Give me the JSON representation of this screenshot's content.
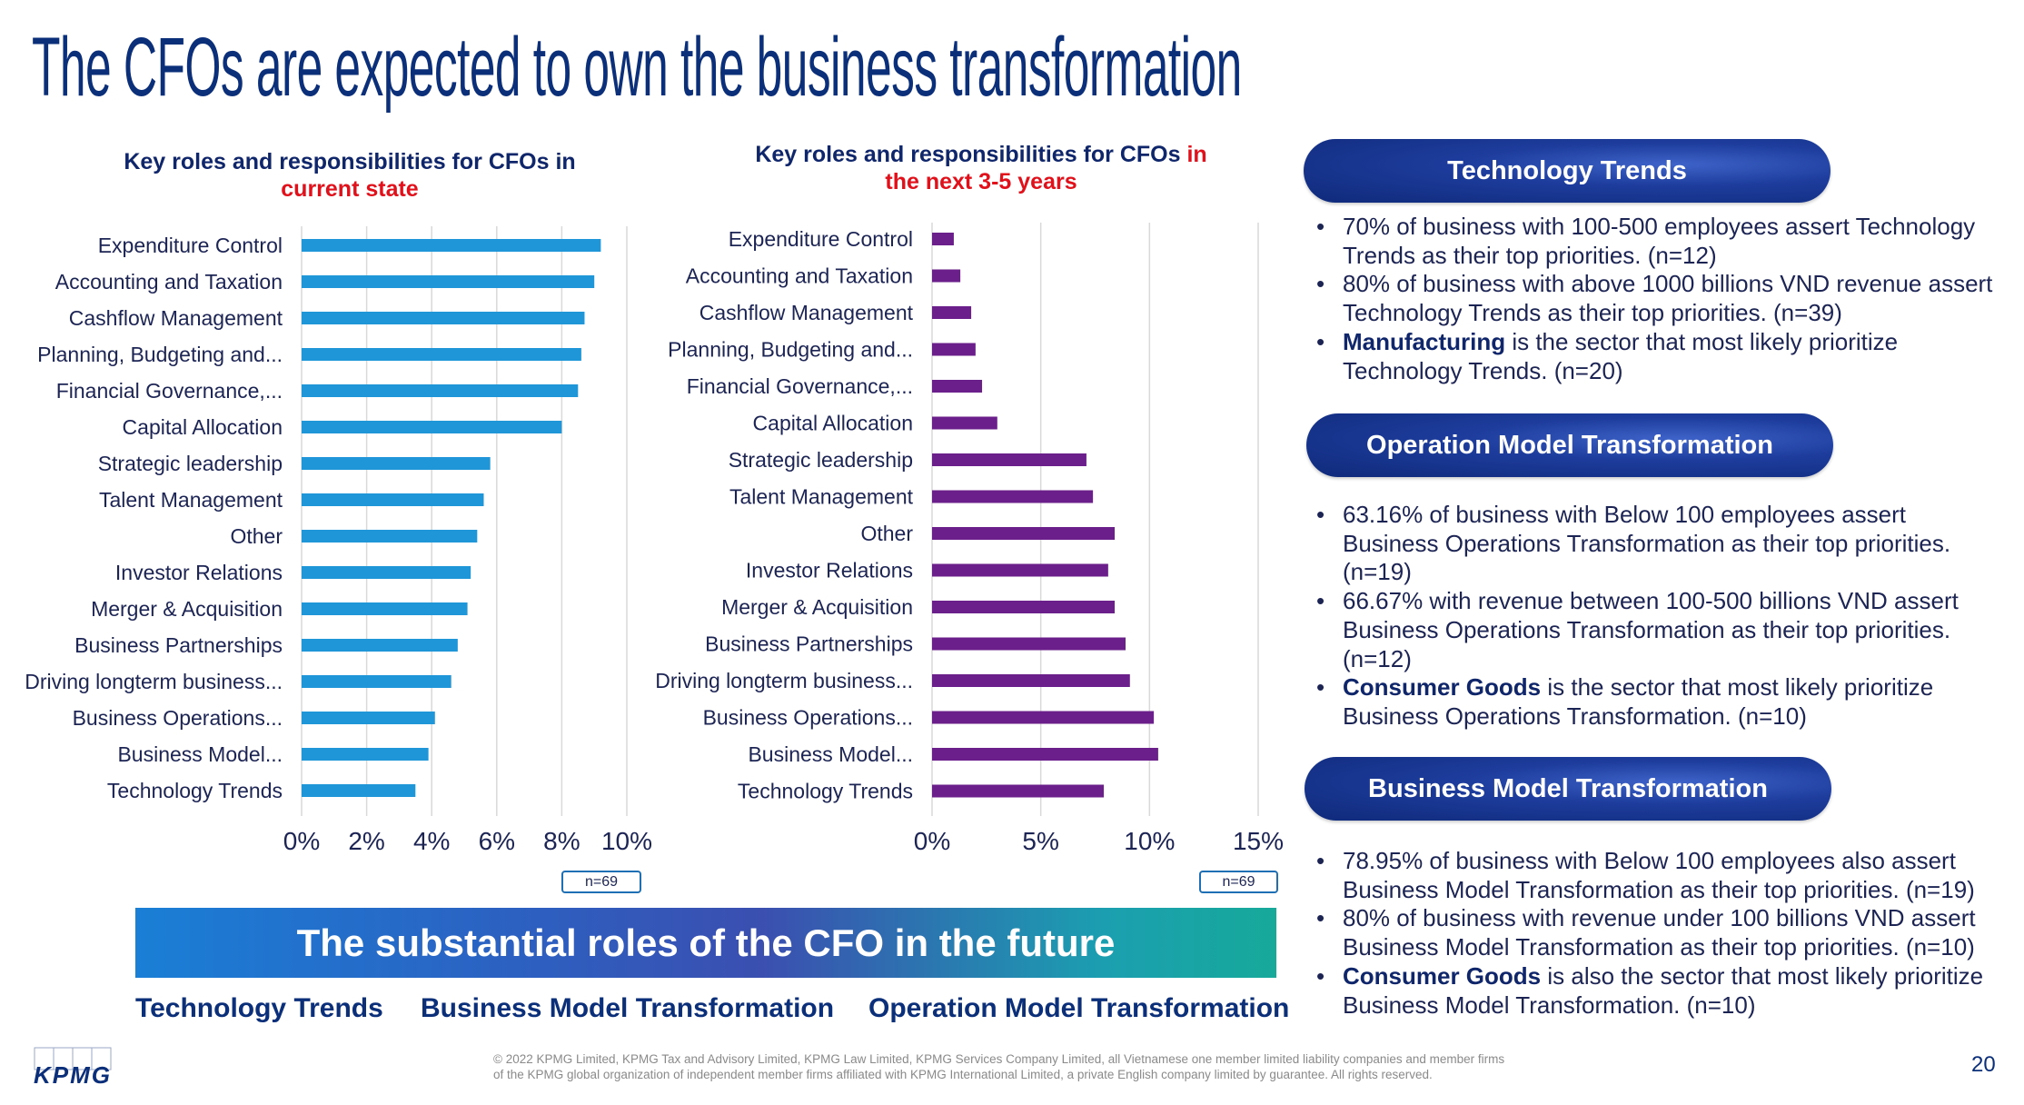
{
  "title": "The CFOs are expected to own the business transformation",
  "chart_data": [
    {
      "type": "bar",
      "orientation": "horizontal",
      "title_part1": "Key roles and responsibilities for CFOs in",
      "title_part2": "current state",
      "categories": [
        "Expenditure Control",
        "Accounting and Taxation",
        "Cashflow Management",
        "Planning, Budgeting and...",
        "Financial Governance,...",
        "Capital Allocation",
        "Strategic leadership",
        "Talent Management",
        "Other",
        "Investor Relations",
        "Merger & Acquisition",
        "Business Partnerships",
        "Driving longterm business...",
        "Business Operations...",
        "Business Model...",
        "Technology Trends"
      ],
      "values": [
        9.2,
        9.0,
        8.7,
        8.6,
        8.5,
        8.0,
        5.8,
        5.6,
        5.4,
        5.2,
        5.1,
        4.8,
        4.6,
        4.1,
        3.9,
        3.5
      ],
      "xlim": [
        0,
        10
      ],
      "ticks": [
        "0%",
        "2%",
        "4%",
        "6%",
        "8%",
        "10%"
      ],
      "tick_values": [
        0,
        2,
        4,
        6,
        8,
        10
      ],
      "grid": true,
      "color": "#1e96d8",
      "note": "n=69"
    },
    {
      "type": "bar",
      "orientation": "horizontal",
      "title_part1": "Key roles and responsibilities for CFOs",
      "title_part1b": "in",
      "title_part2": "the next 3-5 years",
      "categories": [
        "Expenditure Control",
        "Accounting and Taxation",
        "Cashflow Management",
        "Planning, Budgeting and...",
        "Financial Governance,...",
        "Capital Allocation",
        "Strategic leadership",
        "Talent Management",
        "Other",
        "Investor Relations",
        "Merger & Acquisition",
        "Business Partnerships",
        "Driving longterm business...",
        "Business Operations...",
        "Business Model...",
        "Technology Trends"
      ],
      "values": [
        1.0,
        1.3,
        1.8,
        2.0,
        2.3,
        3.0,
        7.1,
        7.4,
        8.4,
        8.1,
        8.4,
        8.9,
        9.1,
        10.2,
        10.4,
        7.9
      ],
      "xlim": [
        0,
        15
      ],
      "ticks": [
        "0%",
        "5%",
        "10%",
        "15%"
      ],
      "tick_values": [
        0,
        5,
        10,
        15
      ],
      "grid": true,
      "color": "#6a1f8a",
      "note": "n=69"
    }
  ],
  "banner": "The substantial roles of the CFO in the future",
  "roles": [
    "Technology Trends",
    "Business Model Transformation",
    "Operation Model Transformation"
  ],
  "sections": [
    {
      "header": "Technology Trends",
      "bullets": [
        {
          "bold": "",
          "text": "70% of business with 100-500 employees assert Technology Trends as their top priorities. (n=12)"
        },
        {
          "bold": "",
          "text": "80% of business with above 1000 billions VND revenue assert Technology Trends as their top priorities. (n=39)"
        },
        {
          "bold": "Manufacturing",
          "text": " is the sector that most likely prioritize Technology Trends. (n=20)"
        }
      ]
    },
    {
      "header": "Operation Model Transformation",
      "bullets": [
        {
          "bold": "",
          "text": "63.16% of business with Below 100 employees assert Business Operations Transformation as their top priorities. (n=19)"
        },
        {
          "bold": "",
          "text": "66.67% with revenue between 100-500 billions VND assert Business Operations Transformation as their top priorities. (n=12)"
        },
        {
          "bold": "Consumer Goods",
          "text": " is the sector that most likely prioritize Business Operations Transformation. (n=10)"
        }
      ]
    },
    {
      "header": "Business Model Transformation",
      "bullets": [
        {
          "bold": "",
          "text": "78.95% of business with Below 100 employees also assert Business Model Transformation as their top priorities. (n=19)"
        },
        {
          "bold": "",
          "text": "80%  of business with revenue under 100 billions VND assert Business Model Transformation as their top priorities. (n=10)"
        },
        {
          "bold": "Consumer Goods",
          "text": " is also the sector that most likely prioritize Business Model Transformation. (n=10)"
        }
      ]
    }
  ],
  "footer": {
    "copyright_line1": "© 2022 KPMG Limited, KPMG Tax and Advisory Limited, KPMG Law Limited, KPMG Services Company Limited, all Vietnamese one member limited liability companies and member firms",
    "copyright_line2": "of the KPMG global organization of independent member firms affiliated with KPMG International Limited, a private English company limited by guarantee. All rights reserved.",
    "page": "20",
    "logo": "KPMG"
  }
}
